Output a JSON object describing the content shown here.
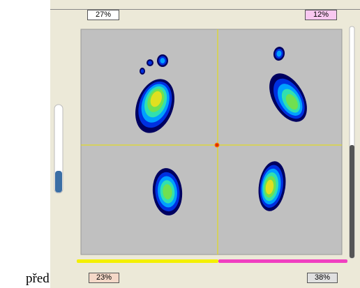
{
  "labels": {
    "top_left": "27%",
    "top_right": "12%",
    "bottom_left": "23%",
    "bottom_right": "38%"
  },
  "caption": "před"
}
